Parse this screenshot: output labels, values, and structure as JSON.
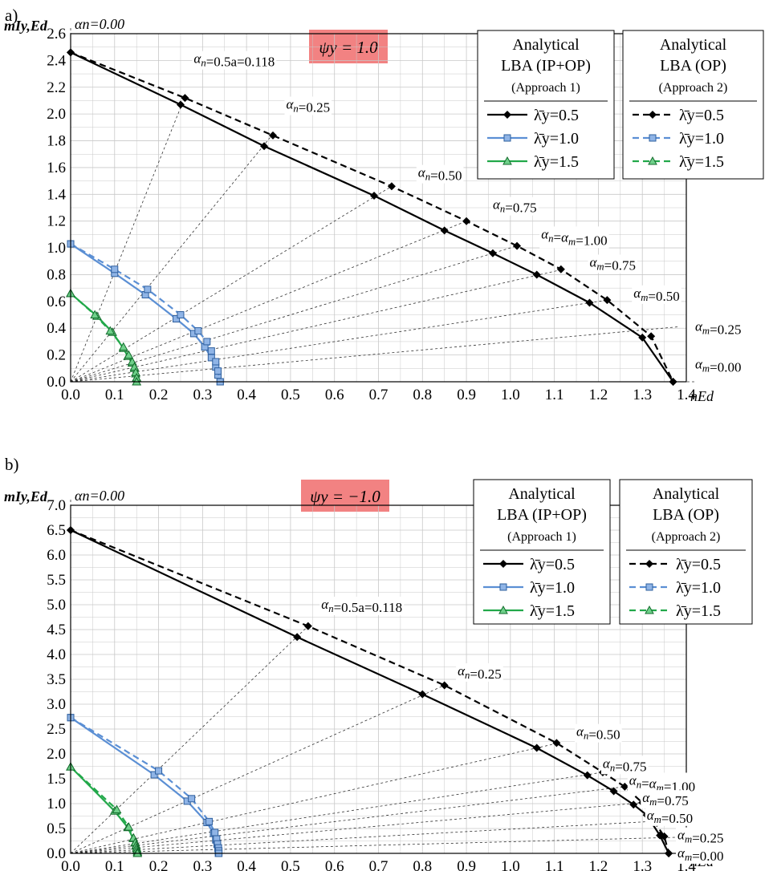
{
  "figure": {
    "bg": "#ffffff",
    "frame": "#000000",
    "grid": "#c8c8c8",
    "ray": "#333333"
  },
  "chart_data": [
    {
      "type": "line",
      "panel_label": "a)",
      "case_label": "ψy = 1.0",
      "case_label_bg": "#f28282",
      "ylabel": "mIy,Ed",
      "xlabel": "nEd",
      "xlim": [
        0,
        1.4
      ],
      "ylim": [
        0,
        2.6
      ],
      "xticks": [
        "0.0",
        "0.1",
        "0.2",
        "0.3",
        "0.4",
        "0.5",
        "0.6",
        "0.7",
        "0.8",
        "0.9",
        "1.0",
        "1.1",
        "1.2",
        "1.3",
        "1.4"
      ],
      "yticks": [
        "0.0",
        "0.2",
        "0.4",
        "0.6",
        "0.8",
        "1.0",
        "1.2",
        "1.4",
        "1.6",
        "1.8",
        "2.0",
        "2.2",
        "2.4",
        "2.6"
      ],
      "grid": true,
      "legend_placement": "top-right",
      "legend_groups": [
        {
          "title_lines": [
            "Analytical",
            "LBA (IP+OP)",
            "(Approach 1)"
          ],
          "dash": "solid",
          "entries": [
            "λ̄y=0.5",
            "λ̄y=1.0",
            "λ̄y=1.5"
          ]
        },
        {
          "title_lines": [
            "Analytical",
            "LBA (OP)",
            "(Approach 2)"
          ],
          "dash": "dashed",
          "entries": [
            "λ̄y=0.5",
            "λ̄y=1.0",
            "λ̄y=1.5"
          ]
        }
      ],
      "series": [
        {
          "style": "solid",
          "color": "#000000",
          "marker": "diamond",
          "points": [
            [
              0.0,
              2.46
            ],
            [
              0.25,
              2.07
            ],
            [
              0.44,
              1.76
            ],
            [
              0.69,
              1.39
            ],
            [
              0.85,
              1.13
            ],
            [
              0.96,
              0.96
            ],
            [
              1.06,
              0.8
            ],
            [
              1.18,
              0.59
            ],
            [
              1.3,
              0.33
            ],
            [
              1.37,
              0.0
            ]
          ]
        },
        {
          "style": "dashed",
          "color": "#000000",
          "marker": "diamond",
          "points": [
            [
              0.0,
              2.46
            ],
            [
              0.26,
              2.12
            ],
            [
              0.46,
              1.84
            ],
            [
              0.73,
              1.46
            ],
            [
              0.9,
              1.2
            ],
            [
              1.015,
              1.015
            ],
            [
              1.115,
              0.84
            ],
            [
              1.22,
              0.61
            ],
            [
              1.32,
              0.34
            ],
            [
              1.37,
              0.0
            ]
          ]
        },
        {
          "style": "solid",
          "color": "#5b8fd4",
          "marker": "square",
          "points": [
            [
              0.0,
              1.03
            ],
            [
              0.1,
              0.81
            ],
            [
              0.17,
              0.65
            ],
            [
              0.24,
              0.47
            ],
            [
              0.28,
              0.36
            ],
            [
              0.305,
              0.26
            ],
            [
              0.32,
              0.18
            ],
            [
              0.33,
              0.11
            ],
            [
              0.335,
              0.05
            ],
            [
              0.34,
              0.0
            ]
          ]
        },
        {
          "style": "dashed",
          "color": "#5b8fd4",
          "marker": "square",
          "points": [
            [
              0.0,
              1.03
            ],
            [
              0.1,
              0.84
            ],
            [
              0.175,
              0.69
            ],
            [
              0.25,
              0.5
            ],
            [
              0.29,
              0.38
            ],
            [
              0.31,
              0.3
            ],
            [
              0.32,
              0.23
            ],
            [
              0.33,
              0.15
            ],
            [
              0.335,
              0.08
            ],
            [
              0.34,
              0.0
            ]
          ]
        },
        {
          "style": "solid",
          "color": "#22a84a",
          "marker": "triangle",
          "points": [
            [
              0.0,
              0.66
            ],
            [
              0.06,
              0.49
            ],
            [
              0.095,
              0.37
            ],
            [
              0.12,
              0.25
            ],
            [
              0.13,
              0.19
            ],
            [
              0.14,
              0.14
            ],
            [
              0.145,
              0.1
            ],
            [
              0.148,
              0.06
            ],
            [
              0.15,
              0.03
            ],
            [
              0.15,
              0.0
            ]
          ]
        },
        {
          "style": "dashed",
          "color": "#22a84a",
          "marker": "triangle",
          "points": [
            [
              0.0,
              0.66
            ],
            [
              0.055,
              0.5
            ],
            [
              0.09,
              0.38
            ],
            [
              0.12,
              0.26
            ],
            [
              0.132,
              0.2
            ],
            [
              0.14,
              0.15
            ],
            [
              0.145,
              0.11
            ],
            [
              0.148,
              0.07
            ],
            [
              0.15,
              0.03
            ],
            [
              0.15,
              0.0
            ]
          ]
        }
      ],
      "rays": [
        {
          "to": [
            0.26,
            2.13
          ],
          "label": "αn=0.5a=0.118",
          "label_at": [
            0.28,
            2.38
          ]
        },
        {
          "to": [
            0.46,
            1.85
          ],
          "label": "αn=0.25",
          "label_at": [
            0.49,
            2.04
          ]
        },
        {
          "to": [
            0.73,
            1.46
          ],
          "label": "αn=0.50",
          "label_at": [
            0.79,
            1.53
          ]
        },
        {
          "to": [
            0.9,
            1.2
          ],
          "label": "αn=0.75",
          "label_at": [
            0.96,
            1.29
          ]
        },
        {
          "to": [
            1.015,
            1.015
          ],
          "label": "αn=αm=1.00",
          "label_at": [
            1.07,
            1.07
          ]
        },
        {
          "to": [
            1.12,
            0.84
          ],
          "label": "αm=0.75",
          "label_at": [
            1.18,
            0.86
          ]
        },
        {
          "to": [
            1.22,
            0.61
          ],
          "label": "αm=0.50",
          "label_at": [
            1.28,
            0.63
          ]
        },
        {
          "to": [
            1.38,
            0.41
          ],
          "label": "αm=0.25",
          "label_at": [
            1.42,
            0.38
          ]
        },
        {
          "to": [
            1.42,
            0.0
          ],
          "label": "αm=0.00",
          "label_at": [
            1.42,
            0.1
          ]
        }
      ],
      "top_label": "αn=0.00"
    },
    {
      "type": "line",
      "panel_label": "b)",
      "case_label": "ψy = −1.0",
      "case_label_bg": "#f28282",
      "ylabel": "mIy,Ed",
      "xlabel": "nEd",
      "xlim": [
        0,
        1.4
      ],
      "ylim": [
        0,
        7.0
      ],
      "xticks": [
        "0.0",
        "0.1",
        "0.2",
        "0.3",
        "0.4",
        "0.5",
        "0.6",
        "0.7",
        "0.8",
        "0.9",
        "1.0",
        "1.1",
        "1.2",
        "1.3",
        "1.4"
      ],
      "yticks": [
        "0.0",
        "0.5",
        "1.0",
        "1.5",
        "2.0",
        "2.5",
        "3.0",
        "3.5",
        "4.0",
        "4.5",
        "5.0",
        "5.5",
        "6.0",
        "6.5",
        "7.0"
      ],
      "grid": true,
      "legend_placement": "top-right",
      "legend_groups": [
        {
          "title_lines": [
            "Analytical",
            "LBA (IP+OP)",
            "(Approach 1)"
          ],
          "dash": "solid",
          "entries": [
            "λ̄y=0.5",
            "λ̄y=1.0",
            "λ̄y=1.5"
          ]
        },
        {
          "title_lines": [
            "Analytical",
            "LBA (OP)",
            "(Approach 2)"
          ],
          "dash": "dashed",
          "entries": [
            "λ̄y=0.5",
            "λ̄y=1.0",
            "λ̄y=1.5"
          ]
        }
      ],
      "series": [
        {
          "style": "solid",
          "color": "#000000",
          "marker": "diamond",
          "points": [
            [
              0.0,
              6.5
            ],
            [
              0.515,
              4.35
            ],
            [
              0.8,
              3.2
            ],
            [
              1.06,
              2.12
            ],
            [
              1.175,
              1.57
            ],
            [
              1.235,
              1.25
            ],
            [
              1.28,
              0.98
            ],
            [
              1.31,
              0.77
            ],
            [
              1.34,
              0.36
            ],
            [
              1.36,
              0.0
            ]
          ]
        },
        {
          "style": "dashed",
          "color": "#000000",
          "marker": "diamond",
          "points": [
            [
              0.0,
              6.5
            ],
            [
              0.54,
              4.57
            ],
            [
              0.85,
              3.38
            ],
            [
              1.105,
              2.22
            ],
            [
              1.21,
              1.63
            ],
            [
              1.26,
              1.34
            ],
            [
              1.3,
              1.02
            ],
            [
              1.325,
              0.66
            ],
            [
              1.35,
              0.34
            ],
            [
              1.36,
              0.0
            ]
          ]
        },
        {
          "style": "solid",
          "color": "#5b8fd4",
          "marker": "square",
          "points": [
            [
              0.0,
              2.73
            ],
            [
              0.19,
              1.58
            ],
            [
              0.265,
              1.05
            ],
            [
              0.31,
              0.62
            ],
            [
              0.325,
              0.4
            ],
            [
              0.33,
              0.27
            ],
            [
              0.333,
              0.18
            ],
            [
              0.335,
              0.1
            ],
            [
              0.336,
              0.04
            ],
            [
              0.336,
              0.0
            ]
          ]
        },
        {
          "style": "dashed",
          "color": "#5b8fd4",
          "marker": "square",
          "points": [
            [
              0.0,
              2.73
            ],
            [
              0.2,
              1.66
            ],
            [
              0.275,
              1.1
            ],
            [
              0.315,
              0.64
            ],
            [
              0.328,
              0.42
            ],
            [
              0.332,
              0.29
            ],
            [
              0.334,
              0.19
            ],
            [
              0.336,
              0.11
            ],
            [
              0.337,
              0.05
            ],
            [
              0.337,
              0.0
            ]
          ]
        },
        {
          "style": "solid",
          "color": "#22a84a",
          "marker": "triangle",
          "points": [
            [
              0.0,
              1.74
            ],
            [
              0.1,
              0.85
            ],
            [
              0.13,
              0.52
            ],
            [
              0.142,
              0.3
            ],
            [
              0.146,
              0.21
            ],
            [
              0.148,
              0.15
            ],
            [
              0.15,
              0.1
            ],
            [
              0.151,
              0.06
            ],
            [
              0.152,
              0.03
            ],
            [
              0.152,
              0.0
            ]
          ]
        },
        {
          "style": "dashed",
          "color": "#22a84a",
          "marker": "triangle",
          "points": [
            [
              0.0,
              1.74
            ],
            [
              0.105,
              0.88
            ],
            [
              0.132,
              0.53
            ],
            [
              0.143,
              0.31
            ],
            [
              0.147,
              0.22
            ],
            [
              0.149,
              0.16
            ],
            [
              0.15,
              0.11
            ],
            [
              0.151,
              0.07
            ],
            [
              0.152,
              0.03
            ],
            [
              0.152,
              0.0
            ]
          ]
        }
      ],
      "rays": [
        {
          "to": [
            0.54,
            4.57
          ],
          "label": "αn=0.5a=0.118",
          "label_at": [
            0.57,
            4.92
          ]
        },
        {
          "to": [
            0.85,
            3.38
          ],
          "label": "αn=0.25",
          "label_at": [
            0.88,
            3.58
          ]
        },
        {
          "to": [
            1.11,
            2.22
          ],
          "label": "αn=0.50",
          "label_at": [
            1.15,
            2.36
          ]
        },
        {
          "to": [
            1.21,
            1.63
          ],
          "label": "αn=0.75",
          "label_at": [
            1.21,
            1.72
          ]
        },
        {
          "to": [
            1.26,
            1.34
          ],
          "label": "αn=αm=1.00",
          "label_at": [
            1.27,
            1.38
          ]
        },
        {
          "to": [
            1.3,
            1.02
          ],
          "label": "αm=0.75",
          "label_at": [
            1.3,
            1.03
          ]
        },
        {
          "to": [
            1.4,
            0.68
          ],
          "label": "αm=0.50",
          "label_at": [
            1.31,
            0.68
          ]
        },
        {
          "to": [
            1.41,
            0.33
          ],
          "label": "αm=0.25",
          "label_at": [
            1.38,
            0.28
          ]
        },
        {
          "to": [
            1.42,
            0.0
          ],
          "label": "αm=0.00",
          "label_at": [
            1.38,
            -0.08
          ]
        }
      ],
      "top_label": "αn=0.00"
    }
  ]
}
